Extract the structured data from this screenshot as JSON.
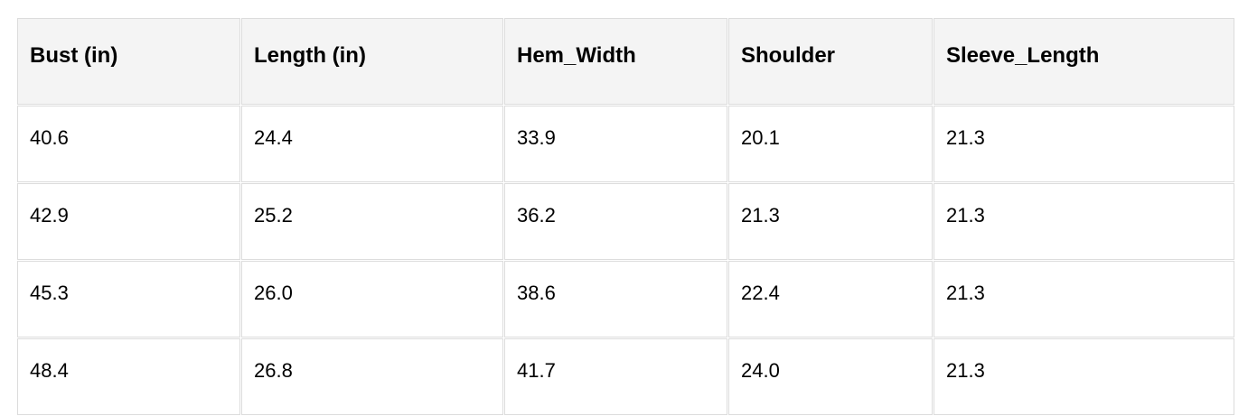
{
  "table": {
    "headers": [
      "Bust (in)",
      "Length (in)",
      "Hem_Width",
      "Shoulder",
      "Sleeve_Length"
    ],
    "rows": [
      [
        "40.6",
        "24.4",
        "33.9",
        "20.1",
        "21.3"
      ],
      [
        "42.9",
        "25.2",
        "36.2",
        "21.3",
        "21.3"
      ],
      [
        "45.3",
        "26.0",
        "38.6",
        "22.4",
        "21.3"
      ],
      [
        "48.4",
        "26.8",
        "41.7",
        "24.0",
        "21.3"
      ]
    ]
  },
  "colors": {
    "header_bg": "#f4f4f4",
    "border": "#dcdcdc"
  }
}
